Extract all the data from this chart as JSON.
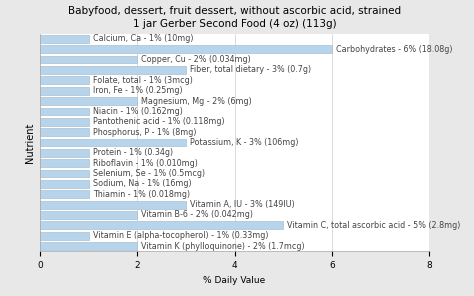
{
  "title": "Babyfood, dessert, fruit dessert, without ascorbic acid, strained\n1 jar Gerber Second Food (4 oz) (113g)",
  "xlabel": "% Daily Value",
  "ylabel": "Nutrient",
  "nutrients": [
    "Calcium, Ca - 1% (10mg)",
    "Carbohydrates - 6% (18.08g)",
    "Copper, Cu - 2% (0.034mg)",
    "Fiber, total dietary - 3% (0.7g)",
    "Folate, total - 1% (3mcg)",
    "Iron, Fe - 1% (0.25mg)",
    "Magnesium, Mg - 2% (6mg)",
    "Niacin - 1% (0.162mg)",
    "Pantothenic acid - 1% (0.118mg)",
    "Phosphorus, P - 1% (8mg)",
    "Potassium, K - 3% (106mg)",
    "Protein - 1% (0.34g)",
    "Riboflavin - 1% (0.010mg)",
    "Selenium, Se - 1% (0.5mcg)",
    "Sodium, Na - 1% (16mg)",
    "Thiamin - 1% (0.018mg)",
    "Vitamin A, IU - 3% (149IU)",
    "Vitamin B-6 - 2% (0.042mg)",
    "Vitamin C, total ascorbic acid - 5% (2.8mg)",
    "Vitamin E (alpha-tocopherol) - 1% (0.33mg)",
    "Vitamin K (phylloquinone) - 2% (1.7mcg)"
  ],
  "values": [
    1,
    6,
    2,
    3,
    1,
    1,
    2,
    1,
    1,
    1,
    3,
    1,
    1,
    1,
    1,
    1,
    3,
    2,
    5,
    1,
    2
  ],
  "bar_color": "#b8d4ea",
  "bar_edge_color": "#9ab8d0",
  "xlim": [
    0,
    8
  ],
  "xticks": [
    0,
    2,
    4,
    6,
    8
  ],
  "bg_color": "#e8e8e8",
  "plot_bg_color": "#ffffff",
  "title_fontsize": 7.5,
  "label_fontsize": 5.8,
  "axis_label_fontsize": 6.5,
  "tick_fontsize": 6.5,
  "ylabel_fontsize": 7
}
